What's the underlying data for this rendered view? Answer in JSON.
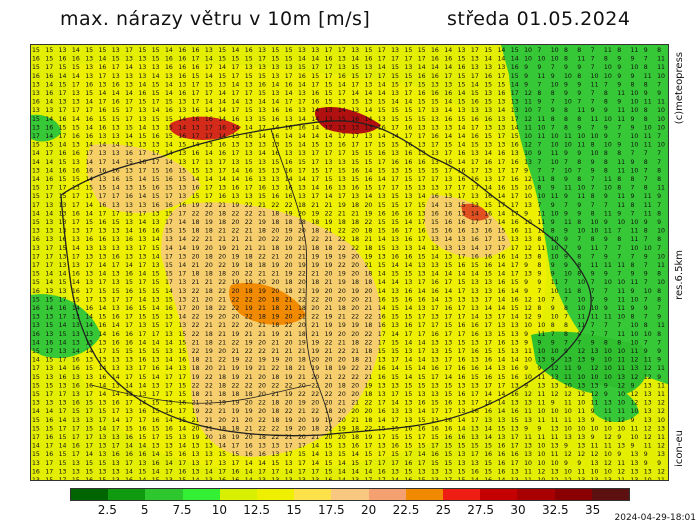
{
  "header": {
    "title": "max. nárazy větru v 10m [m/s]",
    "date": "středa 01.05.2024"
  },
  "side_labels": {
    "credit": "(c)meteopress",
    "resolution": "res.6.5km",
    "model": "icon-eu"
  },
  "timestamp": "2024-04-29-18:01",
  "legend": {
    "colors": [
      "#006400",
      "#109a10",
      "#2ec82e",
      "#34f034",
      "#d8f000",
      "#eef000",
      "#ffe14a",
      "#f8c880",
      "#f4a070",
      "#f28a00",
      "#ee1e14",
      "#c40000",
      "#a80000",
      "#8a0000",
      "#5c1010"
    ],
    "labels": [
      "2.5",
      "5",
      "7.5",
      "10",
      "12.5",
      "15",
      "17.5",
      "20",
      "22.5",
      "25",
      "27.5",
      "30",
      "32.5",
      "35"
    ]
  }
}
